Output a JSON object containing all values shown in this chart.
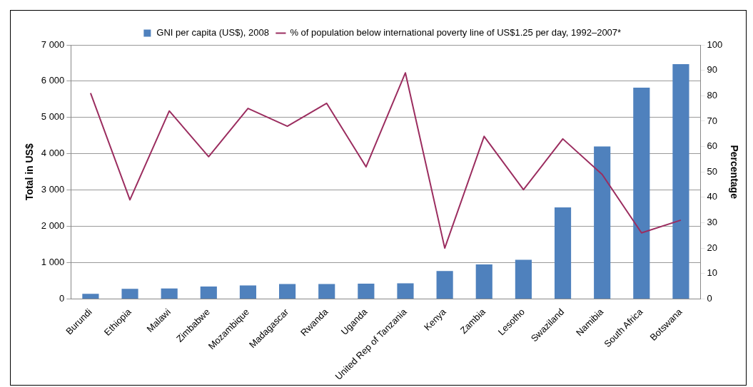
{
  "chart_data": {
    "type": "bar",
    "categories": [
      "Burundi",
      "Ethiopia",
      "Malawi",
      "Zimbabwe",
      "Mozambique",
      "Madagascar",
      "Rwanda",
      "Uganda",
      "United Rep of Tanzania",
      "Kenya",
      "Zambia",
      "Lesotho",
      "Swaziland",
      "Namibia",
      "South Africa",
      "Botswana"
    ],
    "series": [
      {
        "name": "GNI per capita (US$), 2008",
        "color": "#4f81bd",
        "values": [
          140,
          280,
          290,
          340,
          370,
          410,
          410,
          420,
          430,
          770,
          950,
          1080,
          2520,
          4200,
          5820,
          6470
        ]
      },
      {
        "name": "% of population below international poverty line of US$1.25 per day, 1992–2007*",
        "type": "line",
        "axis": "y2",
        "color": "#9b2d5f",
        "values": [
          81,
          39,
          74,
          56,
          75,
          68,
          77,
          52,
          89,
          20,
          64,
          43,
          63,
          49,
          26,
          31
        ]
      }
    ],
    "ylabel": "Total in US$",
    "y2label": "Percentage",
    "ylim": [
      0,
      7000
    ],
    "yticks": [
      {
        "value": 0,
        "label": "0"
      },
      {
        "value": 1000,
        "label": "1 000"
      },
      {
        "value": 2000,
        "label": "2 000"
      },
      {
        "value": 3000,
        "label": "3 000"
      },
      {
        "value": 4000,
        "label": "4 000"
      },
      {
        "value": 5000,
        "label": "5 000"
      },
      {
        "value": 6000,
        "label": "6 000"
      },
      {
        "value": 7000,
        "label": "7 000"
      }
    ],
    "y2lim": [
      0,
      100
    ],
    "y2ticks": [
      0,
      10,
      20,
      30,
      40,
      50,
      60,
      70,
      80,
      90,
      100
    ],
    "grid": "y",
    "legend": "top",
    "marker": "none"
  }
}
